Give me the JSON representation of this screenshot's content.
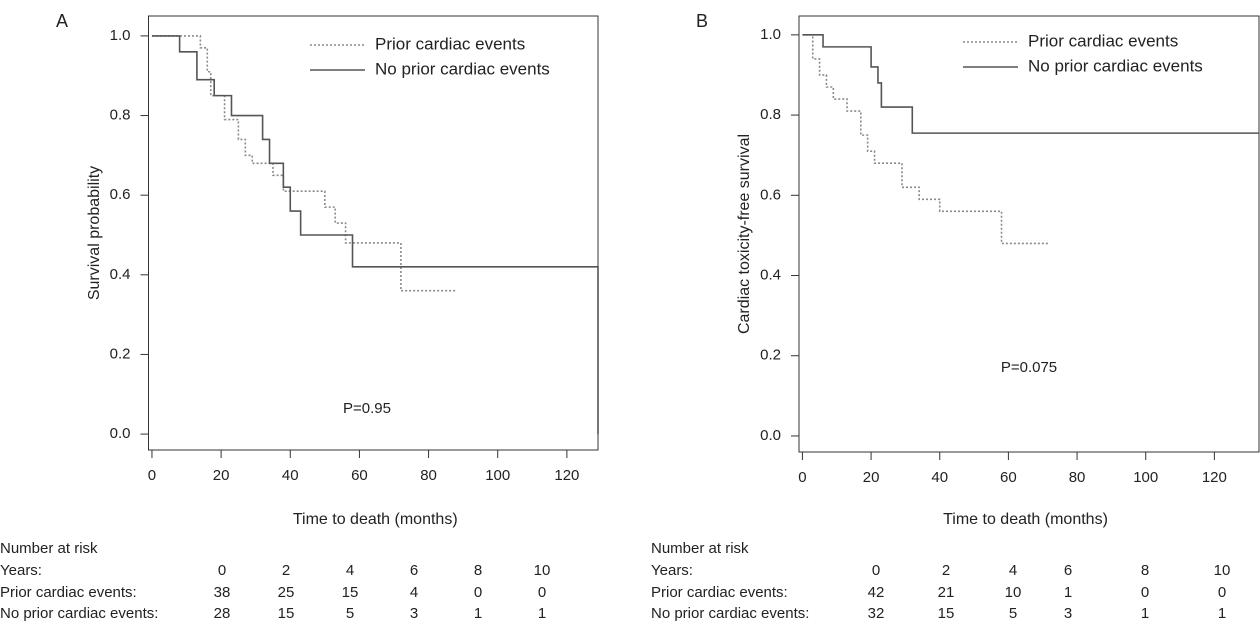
{
  "chart_data": [
    {
      "type": "line",
      "panel": "A",
      "ylabel": "Survival probability",
      "xlabel": "Time to death (months)",
      "annotation": "P=0.95",
      "xlim": [
        -1,
        129
      ],
      "ylim": [
        -0.04,
        1.05
      ],
      "xticks": [
        0,
        20,
        40,
        60,
        80,
        100,
        120
      ],
      "yticks": [
        {
          "value": 0,
          "label": "0.0"
        },
        0.2,
        0.4,
        0.6,
        0.8,
        {
          "value": 1,
          "label": "1.0"
        }
      ],
      "series": [
        {
          "name": "Prior cardiac events",
          "color": "#8a8a8a",
          "style": "dotted",
          "x": [
            0,
            14,
            14,
            16,
            16,
            17,
            17,
            21,
            21,
            25,
            25,
            27,
            27,
            29,
            29,
            35,
            35,
            38,
            38,
            50,
            50,
            53,
            53,
            56,
            56,
            72,
            72,
            88
          ],
          "values": [
            1,
            1,
            0.97,
            0.97,
            0.91,
            0.91,
            0.85,
            0.85,
            0.79,
            0.79,
            0.74,
            0.74,
            0.7,
            0.7,
            0.68,
            0.68,
            0.65,
            0.65,
            0.61,
            0.61,
            0.57,
            0.57,
            0.53,
            0.53,
            0.48,
            0.48,
            0.36,
            0.36
          ]
        },
        {
          "name": "No prior cardiac events",
          "color": "#555555",
          "style": "solid",
          "x": [
            0,
            8,
            8,
            13,
            13,
            18,
            18,
            23,
            23,
            32,
            32,
            34,
            34,
            38,
            38,
            40,
            40,
            43,
            43,
            58,
            58,
            129,
            129
          ],
          "values": [
            1,
            1,
            0.96,
            0.96,
            0.89,
            0.89,
            0.85,
            0.85,
            0.8,
            0.8,
            0.74,
            0.74,
            0.68,
            0.68,
            0.62,
            0.62,
            0.56,
            0.56,
            0.5,
            0.5,
            0.42,
            0.42,
            0.0
          ]
        }
      ],
      "risk_table": {
        "title": "Number at risk",
        "header": "Years:",
        "years": [
          0,
          2,
          4,
          6,
          8,
          10
        ],
        "rows": [
          {
            "label": "Prior cardiac events:",
            "values": [
              38,
              25,
              15,
              4,
              0,
              0
            ]
          },
          {
            "label": "No prior cardiac events:",
            "values": [
              28,
              15,
              5,
              3,
              1,
              1
            ]
          }
        ]
      }
    },
    {
      "type": "line",
      "panel": "B",
      "ylabel": "Cardiac toxicity-free survival",
      "xlabel": "Time to death (months)",
      "annotation": "P=0.075",
      "xlim": [
        -1,
        133
      ],
      "ylim": [
        -0.04,
        1.047
      ],
      "xticks": [
        0,
        20,
        40,
        60,
        80,
        100,
        120
      ],
      "yticks": [
        {
          "value": 0,
          "label": "0.0"
        },
        0.2,
        0.4,
        0.6,
        0.8,
        {
          "value": 1,
          "label": "1.0"
        }
      ],
      "series": [
        {
          "name": "Prior cardiac events",
          "color": "#8a8a8a",
          "style": "dotted",
          "x": [
            0,
            3,
            3,
            5,
            5,
            7,
            7,
            9,
            9,
            13,
            13,
            17,
            17,
            19,
            19,
            21,
            21,
            29,
            29,
            34,
            34,
            40,
            40,
            58,
            58,
            72
          ],
          "values": [
            1,
            1,
            0.94,
            0.94,
            0.9,
            0.9,
            0.87,
            0.87,
            0.84,
            0.84,
            0.81,
            0.81,
            0.75,
            0.75,
            0.71,
            0.71,
            0.68,
            0.68,
            0.62,
            0.62,
            0.59,
            0.59,
            0.56,
            0.56,
            0.48,
            0.48
          ]
        },
        {
          "name": "No prior cardiac events",
          "color": "#555555",
          "style": "solid",
          "x": [
            0,
            6,
            6,
            20,
            20,
            22,
            22,
            23,
            23,
            32,
            32,
            133
          ],
          "values": [
            1,
            1,
            0.97,
            0.97,
            0.92,
            0.92,
            0.88,
            0.88,
            0.82,
            0.82,
            0.755,
            0.755
          ]
        }
      ],
      "risk_table": {
        "title": "Number at risk",
        "header": "Years:",
        "years": [
          0,
          2,
          4,
          6,
          8,
          10
        ],
        "rows": [
          {
            "label": "Prior cardiac events:",
            "values": [
              42,
              21,
              10,
              1,
              0,
              0
            ]
          },
          {
            "label": "No prior cardiac events:",
            "values": [
              32,
              15,
              5,
              3,
              1,
              1
            ]
          }
        ]
      }
    }
  ]
}
